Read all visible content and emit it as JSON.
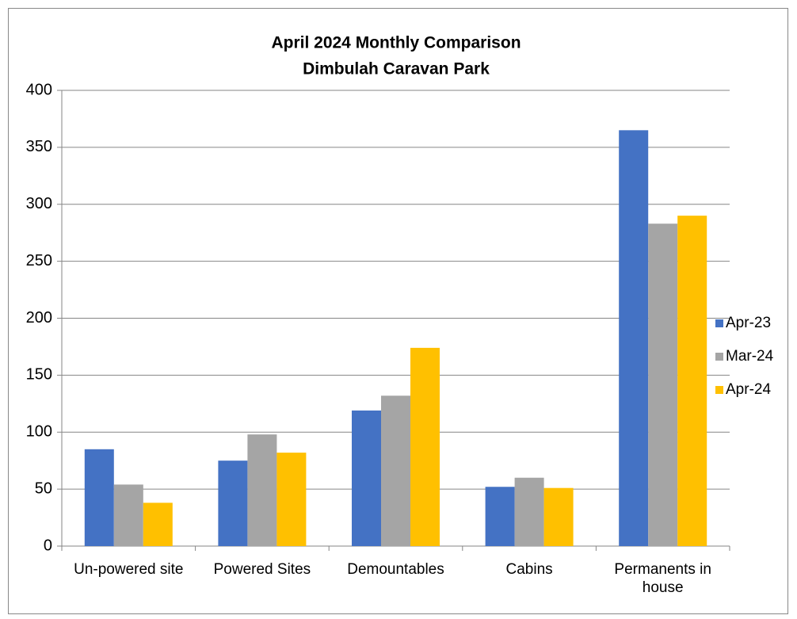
{
  "chart_data": {
    "type": "bar",
    "title": "April 2024 Monthly Comparison",
    "subtitle": "Dimbulah Caravan Park",
    "categories": [
      "Un-powered site",
      "Powered Sites",
      "Demountables",
      "Cabins",
      "Permanents in house"
    ],
    "series": [
      {
        "name": "Apr-23",
        "color": "#4472c4",
        "values": [
          85,
          75,
          119,
          52,
          365
        ]
      },
      {
        "name": "Mar-24",
        "color": "#a5a5a5",
        "values": [
          54,
          98,
          132,
          60,
          283
        ]
      },
      {
        "name": "Apr-24",
        "color": "#ffc000",
        "values": [
          38,
          82,
          174,
          51,
          290
        ]
      }
    ],
    "ylim": [
      0,
      400
    ],
    "yticks": [
      0,
      50,
      100,
      150,
      200,
      250,
      300,
      350,
      400
    ],
    "grid": true,
    "legend": "right"
  }
}
